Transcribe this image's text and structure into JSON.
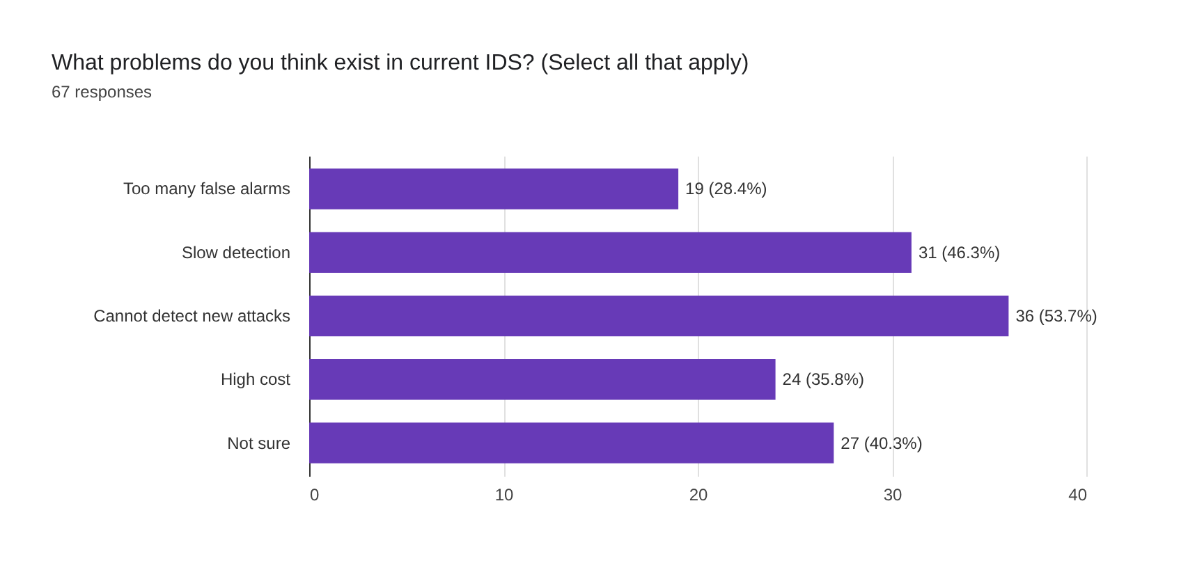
{
  "chart_data": {
    "type": "bar",
    "orientation": "horizontal",
    "title": "What problems do you think exist in current IDS? (Select all that apply)",
    "subtitle": "67 responses",
    "categories": [
      "Too many false alarms",
      "Slow detection",
      "Cannot detect new attacks",
      "High cost",
      "Not sure"
    ],
    "values": [
      19,
      31,
      36,
      24,
      27
    ],
    "value_labels": [
      "19 (28.4%)",
      "31 (46.3%)",
      "36 (53.7%)",
      "24 (35.8%)",
      "27 (40.3%)"
    ],
    "color": "#673ab7",
    "xlim": [
      0,
      40
    ],
    "xticks": [
      0,
      10,
      20,
      30,
      40
    ],
    "grid": "x"
  }
}
